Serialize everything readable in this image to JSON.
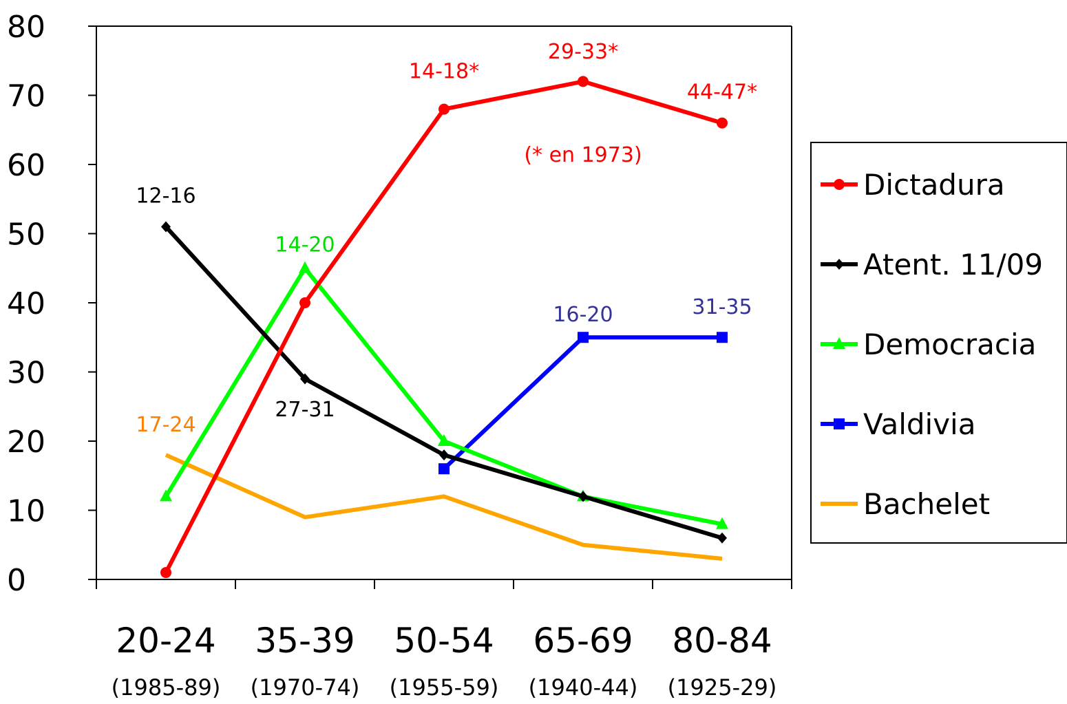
{
  "chart_data": {
    "type": "line",
    "title": "",
    "xlabel": "",
    "ylabel": "",
    "ylim": [
      0,
      80
    ],
    "yticks": [
      0,
      10,
      20,
      30,
      40,
      50,
      60,
      70,
      80
    ],
    "categories": [
      "20-24",
      "35-39",
      "50-54",
      "65-69",
      "80-84"
    ],
    "category_sublabels": [
      "(1985-89)",
      "(1970-74)",
      "(1955-59)",
      "(1940-44)",
      "(1925-29)"
    ],
    "grid": false,
    "legend_position": "right",
    "series": [
      {
        "name": "Dictadura",
        "color": "#ff0000",
        "marker": "circle",
        "values": [
          1,
          40,
          68,
          72,
          66
        ]
      },
      {
        "name": "Atent. 11/09",
        "color": "#000000",
        "marker": "diamond",
        "values": [
          51,
          29,
          18,
          12,
          6
        ]
      },
      {
        "name": "Democracia",
        "color": "#00ff00",
        "marker": "triangle",
        "values": [
          12,
          45,
          20,
          12,
          8
        ]
      },
      {
        "name": "Valdivia",
        "color": "#0000ff",
        "marker": "square",
        "values": [
          null,
          null,
          16,
          35,
          35
        ]
      },
      {
        "name": "Bachelet",
        "color": "#ffa500",
        "marker": "none",
        "values": [
          18,
          9,
          12,
          5,
          3
        ]
      }
    ],
    "annotations": [
      {
        "text": "14-18*",
        "color": "#ff0000",
        "category": 2,
        "y": 72.5
      },
      {
        "text": "29-33*",
        "color": "#ff0000",
        "category": 3,
        "y": 75.3
      },
      {
        "text": "44-47*",
        "color": "#ff0000",
        "category": 4,
        "y": 69.5
      },
      {
        "text": "(* en 1973)",
        "color": "#ff0000",
        "category": 3,
        "y": 60.4
      },
      {
        "text": "12-16",
        "color": "#000000",
        "category": 0,
        "y": 54.5
      },
      {
        "text": "14-20",
        "color": "#00dd00",
        "category": 1,
        "y": 47.4
      },
      {
        "text": "27-31",
        "color": "#000000",
        "category": 1,
        "y": 23.6
      },
      {
        "text": "17-24",
        "color": "#ff8000",
        "category": 0,
        "y": 21.4
      },
      {
        "text": "16-20",
        "color": "#333399",
        "category": 3,
        "y": 37.3
      },
      {
        "text": "31-35",
        "color": "#333399",
        "category": 4,
        "y": 38.4
      }
    ]
  }
}
